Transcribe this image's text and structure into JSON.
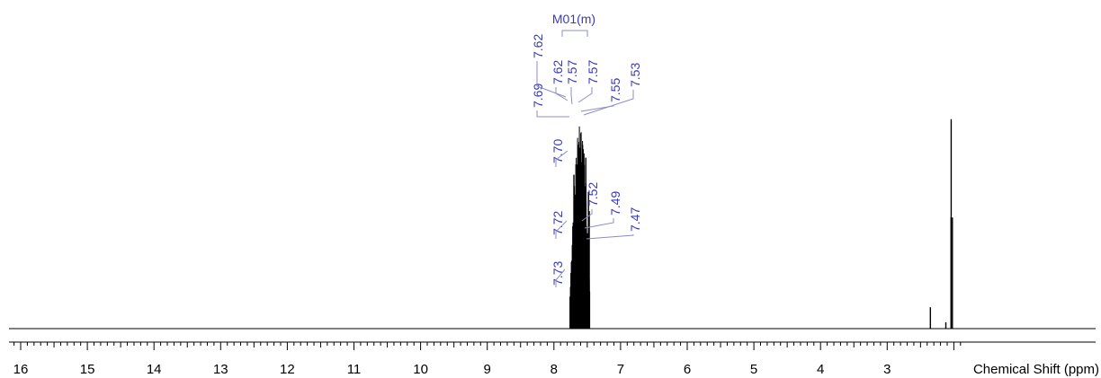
{
  "chart_data": {
    "type": "line",
    "title": "",
    "xlabel": "Chemical Shift (ppm)",
    "ylabel": "",
    "x_reversed": true,
    "xlim": [
      16.4,
      1.9
    ],
    "x_ticks": [
      16,
      15,
      14,
      13,
      12,
      11,
      10,
      9,
      8,
      7,
      6,
      5,
      4,
      3
    ],
    "x_tick_labels": [
      "16",
      "15",
      "14",
      "13",
      "12",
      "11",
      "10",
      "9",
      "8",
      "7",
      "6",
      "5",
      "4",
      "3"
    ],
    "ylim": [
      0,
      1
    ],
    "grid": false,
    "legend": "none",
    "colors": {
      "spectrum": "#000000",
      "annotation": "#3b3bb3",
      "leader": "#8c8cc6"
    },
    "multiplet": {
      "label": "M01(m)",
      "from_ppm": 7.73,
      "to_ppm": 7.47
    },
    "peak_labels": [
      "7.73",
      "7.72",
      "7.70",
      "7.69",
      "7.62",
      "7.62",
      "7.57",
      "7.57",
      "7.55",
      "7.53",
      "7.52",
      "7.49",
      "7.47"
    ],
    "peaks": [
      {
        "ppm": 7.73,
        "height": 0.16
      },
      {
        "ppm": 7.72,
        "height": 0.24
      },
      {
        "ppm": 7.7,
        "height": 0.72
      },
      {
        "ppm": 7.69,
        "height": 0.46
      },
      {
        "ppm": 7.62,
        "height": 0.8
      },
      {
        "ppm": 7.62,
        "height": 0.78
      },
      {
        "ppm": 7.57,
        "height": 0.86
      },
      {
        "ppm": 7.57,
        "height": 0.84
      },
      {
        "ppm": 7.55,
        "height": 0.82
      },
      {
        "ppm": 7.53,
        "height": 0.8
      },
      {
        "ppm": 7.52,
        "height": 0.68
      },
      {
        "ppm": 7.49,
        "height": 0.64
      },
      {
        "ppm": 7.47,
        "height": 0.55
      },
      {
        "ppm": 2.36,
        "height": 0.1
      },
      {
        "ppm": 2.12,
        "height": 0.03
      },
      {
        "ppm": 2.05,
        "height": 0.52
      },
      {
        "ppm": 2.04,
        "height": 0.98
      },
      {
        "ppm": 2.03,
        "height": 0.52
      }
    ]
  }
}
